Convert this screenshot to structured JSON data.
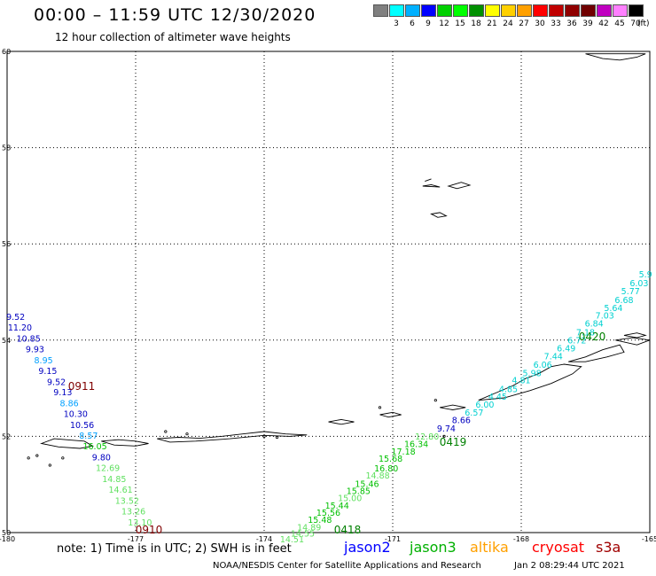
{
  "header": {
    "title": "00:00 – 11:59 UTC 12/30/2020",
    "subtitle": "12 hour collection of altimeter wave heights"
  },
  "color_scale": {
    "unit": "(ft)",
    "bins": [
      {
        "label": "",
        "color": "#808080"
      },
      {
        "label": "3",
        "color": "#00ffff"
      },
      {
        "label": "6",
        "color": "#00b0ff"
      },
      {
        "label": "9",
        "color": "#0000ff"
      },
      {
        "label": "12",
        "color": "#00d000"
      },
      {
        "label": "15",
        "color": "#00ff00"
      },
      {
        "label": "18",
        "color": "#009000"
      },
      {
        "label": "21",
        "color": "#ffff00"
      },
      {
        "label": "24",
        "color": "#ffd000"
      },
      {
        "label": "27",
        "color": "#ffa000"
      },
      {
        "label": "30",
        "color": "#ff0000"
      },
      {
        "label": "33",
        "color": "#c00000"
      },
      {
        "label": "36",
        "color": "#900000"
      },
      {
        "label": "39",
        "color": "#700000"
      },
      {
        "label": "42",
        "color": "#c000c0"
      },
      {
        "label": "45",
        "color": "#ff80ff"
      },
      {
        "label": "70",
        "color": "#000000"
      }
    ]
  },
  "map": {
    "lon_range": [
      -180,
      -165
    ],
    "lat_range": [
      50,
      60
    ],
    "lon_ticks": [
      "-180",
      "-177",
      "-174",
      "-171",
      "-168",
      "-165"
    ],
    "lat_ticks": [
      "50",
      "52",
      "54",
      "56",
      "58",
      "60"
    ],
    "grid": true
  },
  "passes": [
    {
      "label": "0911",
      "color": "#800000"
    },
    {
      "label": "0910",
      "color": "#800000"
    },
    {
      "label": "0420",
      "color": "#008000"
    },
    {
      "label": "0419",
      "color": "#008000"
    },
    {
      "label": "0418",
      "color": "#008000"
    }
  ],
  "observations": [
    {
      "value": "9.52",
      "lon": -179.8,
      "lat": 54.42,
      "color": "#0000c0"
    },
    {
      "value": "11.20",
      "lon": -179.7,
      "lat": 54.2,
      "color": "#0000c0"
    },
    {
      "value": "10.85",
      "lon": -179.5,
      "lat": 53.97,
      "color": "#0000c0"
    },
    {
      "value": "9.93",
      "lon": -179.35,
      "lat": 53.75,
      "color": "#0000c0"
    },
    {
      "value": "8.95",
      "lon": -179.15,
      "lat": 53.52,
      "color": "#00a0ff"
    },
    {
      "value": "9.15",
      "lon": -179.05,
      "lat": 53.3,
      "color": "#0000c0"
    },
    {
      "value": "9.52",
      "lon": -178.85,
      "lat": 53.07,
      "color": "#0000c0"
    },
    {
      "value": "9.13",
      "lon": -178.7,
      "lat": 52.85,
      "color": "#0000c0"
    },
    {
      "value": "8.86",
      "lon": -178.55,
      "lat": 52.62,
      "color": "#00a0ff"
    },
    {
      "value": "10.30",
      "lon": -178.4,
      "lat": 52.4,
      "color": "#0000c0"
    },
    {
      "value": "10.56",
      "lon": -178.25,
      "lat": 52.17,
      "color": "#0000c0"
    },
    {
      "value": "8.57",
      "lon": -178.1,
      "lat": 51.95,
      "color": "#00a0ff"
    },
    {
      "value": "16.05",
      "lon": -177.95,
      "lat": 51.73,
      "color": "#00c000"
    },
    {
      "value": "9.80",
      "lon": -177.8,
      "lat": 51.5,
      "color": "#0000c0"
    },
    {
      "value": "12.69",
      "lon": -177.65,
      "lat": 51.28,
      "color": "#60e060"
    },
    {
      "value": "14.85",
      "lon": -177.5,
      "lat": 51.05,
      "color": "#60e060"
    },
    {
      "value": "14.61",
      "lon": -177.35,
      "lat": 50.83,
      "color": "#60e060"
    },
    {
      "value": "13.52",
      "lon": -177.2,
      "lat": 50.6,
      "color": "#60e060"
    },
    {
      "value": "13.26",
      "lon": -177.05,
      "lat": 50.38,
      "color": "#60e060"
    },
    {
      "value": "13.10",
      "lon": -176.9,
      "lat": 50.15,
      "color": "#60e060"
    },
    {
      "value": "5.9",
      "lon": -165.1,
      "lat": 55.3,
      "color": "#00d0d0"
    },
    {
      "value": "6.03",
      "lon": -165.25,
      "lat": 55.12,
      "color": "#00d0d0"
    },
    {
      "value": "5.77",
      "lon": -165.45,
      "lat": 54.95,
      "color": "#00d0d0"
    },
    {
      "value": "6.68",
      "lon": -165.6,
      "lat": 54.77,
      "color": "#00d0d0"
    },
    {
      "value": "5.64",
      "lon": -165.85,
      "lat": 54.6,
      "color": "#00d0d0"
    },
    {
      "value": "7.03",
      "lon": -166.05,
      "lat": 54.45,
      "color": "#00d0d0"
    },
    {
      "value": "6.84",
      "lon": -166.3,
      "lat": 54.28,
      "color": "#00d0d0"
    },
    {
      "value": "7.18",
      "lon": -166.5,
      "lat": 54.1,
      "color": "#00d0d0"
    },
    {
      "value": "6.72",
      "lon": -166.7,
      "lat": 53.93,
      "color": "#00d0d0"
    },
    {
      "value": "6.49",
      "lon": -166.95,
      "lat": 53.77,
      "color": "#00d0d0"
    },
    {
      "value": "7.44",
      "lon": -167.25,
      "lat": 53.6,
      "color": "#00d0d0"
    },
    {
      "value": "6.06",
      "lon": -167.5,
      "lat": 53.43,
      "color": "#00d0d0"
    },
    {
      "value": "5.98",
      "lon": -167.75,
      "lat": 53.25,
      "color": "#00d0d0"
    },
    {
      "value": "4.81",
      "lon": -168.0,
      "lat": 53.1,
      "color": "#00d0d0"
    },
    {
      "value": "4.85",
      "lon": -168.3,
      "lat": 52.92,
      "color": "#00d0d0"
    },
    {
      "value": "4.45",
      "lon": -168.55,
      "lat": 52.76,
      "color": "#00d0d0"
    },
    {
      "value": "6.00",
      "lon": -168.85,
      "lat": 52.6,
      "color": "#00d0d0"
    },
    {
      "value": "6.57",
      "lon": -169.1,
      "lat": 52.43,
      "color": "#00d0d0"
    },
    {
      "value": "8.66",
      "lon": -169.4,
      "lat": 52.27,
      "color": "#0000c0"
    },
    {
      "value": "9.74",
      "lon": -169.75,
      "lat": 52.1,
      "color": "#0000c0"
    },
    {
      "value": "12.80",
      "lon": -170.2,
      "lat": 51.93,
      "color": "#60e060"
    },
    {
      "value": "16.34",
      "lon": -170.45,
      "lat": 51.78,
      "color": "#00c000"
    },
    {
      "value": "17.18",
      "lon": -170.75,
      "lat": 51.62,
      "color": "#00c000"
    },
    {
      "value": "15.68",
      "lon": -171.05,
      "lat": 51.47,
      "color": "#00c000"
    },
    {
      "value": "16.80",
      "lon": -171.15,
      "lat": 51.27,
      "color": "#00c000"
    },
    {
      "value": "14.88",
      "lon": -171.35,
      "lat": 51.12,
      "color": "#60e060"
    },
    {
      "value": "15.46",
      "lon": -171.6,
      "lat": 50.95,
      "color": "#00c000"
    },
    {
      "value": "15.85",
      "lon": -171.8,
      "lat": 50.8,
      "color": "#00c000"
    },
    {
      "value": "15.00",
      "lon": -172.0,
      "lat": 50.65,
      "color": "#60e060"
    },
    {
      "value": "15.44",
      "lon": -172.3,
      "lat": 50.5,
      "color": "#00c000"
    },
    {
      "value": "15.56",
      "lon": -172.5,
      "lat": 50.35,
      "color": "#00c000"
    },
    {
      "value": "15.48",
      "lon": -172.7,
      "lat": 50.2,
      "color": "#00c000"
    },
    {
      "value": "14.89",
      "lon": -172.95,
      "lat": 50.05,
      "color": "#60e060"
    },
    {
      "value": "14.55",
      "lon": -173.1,
      "lat": 49.92,
      "color": "#60e060"
    },
    {
      "value": "14.51",
      "lon": -173.35,
      "lat": 49.8,
      "color": "#60e060"
    }
  ],
  "note": "note: 1) Time is in UTC; 2) SWH is in feet",
  "satellites": [
    {
      "name": "jason2",
      "color": "#0000ff"
    },
    {
      "name": "jason3",
      "color": "#00b000"
    },
    {
      "name": "altika",
      "color": "#ffa000"
    },
    {
      "name": "cryosat",
      "color": "#ff0000"
    },
    {
      "name": "s3a",
      "color": "#a00000"
    }
  ],
  "credit": "NOAA/NESDIS Center for Satellite Applications and Research",
  "credit_time": "Jan  2 08:29:44 UTC 2021"
}
